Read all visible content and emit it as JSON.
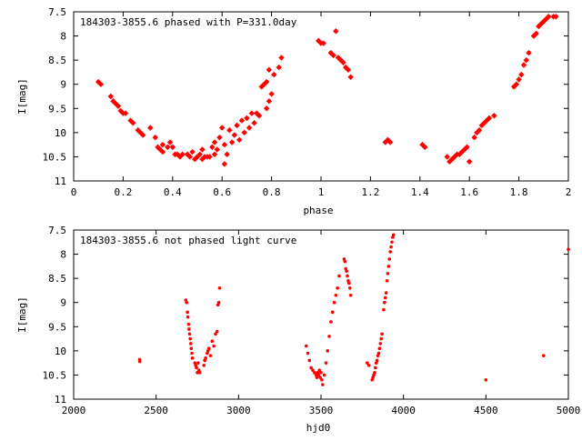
{
  "chart_data": [
    {
      "type": "scatter",
      "title": "184303-3855.6 phased with P=331.0day",
      "xlabel": "phase",
      "ylabel": "I[mag]",
      "xlim": [
        0,
        2
      ],
      "ylim": [
        11,
        7.5
      ],
      "y_inverted": true,
      "xticks": [
        0,
        0.2,
        0.4,
        0.6,
        0.8,
        1,
        1.2,
        1.4,
        1.6,
        1.8,
        2
      ],
      "xtick_labels": [
        "0",
        "0.2",
        "0.4",
        "0.6",
        "0.8",
        "1",
        "1.2",
        "1.4",
        "1.6",
        "1.8",
        "2"
      ],
      "yticks": [
        7.5,
        8,
        8.5,
        9,
        9.5,
        10,
        10.5,
        11
      ],
      "ytick_labels": [
        "7.5",
        "8",
        "8.5",
        "9",
        "9.5",
        "10",
        "10.5",
        "11"
      ],
      "marker_color": "#ff0000",
      "series": [
        {
          "points": [
            [
              0.1,
              8.95
            ],
            [
              0.11,
              9.0
            ],
            [
              0.15,
              9.25
            ],
            [
              0.16,
              9.35
            ],
            [
              0.17,
              9.4
            ],
            [
              0.18,
              9.45
            ],
            [
              0.19,
              9.55
            ],
            [
              0.2,
              9.6
            ],
            [
              0.21,
              9.6
            ],
            [
              0.23,
              9.75
            ],
            [
              0.24,
              9.8
            ],
            [
              0.26,
              9.95
            ],
            [
              0.27,
              10.0
            ],
            [
              0.28,
              10.05
            ],
            [
              0.31,
              9.9
            ],
            [
              0.33,
              10.1
            ],
            [
              0.34,
              10.3
            ],
            [
              0.35,
              10.35
            ],
            [
              0.36,
              10.25
            ],
            [
              0.36,
              10.4
            ],
            [
              0.38,
              10.3
            ],
            [
              0.39,
              10.2
            ],
            [
              0.4,
              10.3
            ],
            [
              0.41,
              10.45
            ],
            [
              0.42,
              10.45
            ],
            [
              0.43,
              10.5
            ],
            [
              0.44,
              10.45
            ],
            [
              0.46,
              10.45
            ],
            [
              0.47,
              10.5
            ],
            [
              0.48,
              10.4
            ],
            [
              0.49,
              10.55
            ],
            [
              0.5,
              10.5
            ],
            [
              0.51,
              10.45
            ],
            [
              0.52,
              10.35
            ],
            [
              0.52,
              10.55
            ],
            [
              0.53,
              10.5
            ],
            [
              0.54,
              10.5
            ],
            [
              0.55,
              10.5
            ],
            [
              0.56,
              10.3
            ],
            [
              0.57,
              10.45
            ],
            [
              0.57,
              10.2
            ],
            [
              0.58,
              10.35
            ],
            [
              0.59,
              10.1
            ],
            [
              0.6,
              9.9
            ],
            [
              0.61,
              10.65
            ],
            [
              0.61,
              10.25
            ],
            [
              0.62,
              10.45
            ],
            [
              0.63,
              9.95
            ],
            [
              0.64,
              10.2
            ],
            [
              0.65,
              10.05
            ],
            [
              0.66,
              9.85
            ],
            [
              0.67,
              10.15
            ],
            [
              0.68,
              9.75
            ],
            [
              0.69,
              10.0
            ],
            [
              0.7,
              9.7
            ],
            [
              0.71,
              9.9
            ],
            [
              0.72,
              9.6
            ],
            [
              0.73,
              9.8
            ],
            [
              0.74,
              9.6
            ],
            [
              0.75,
              9.65
            ],
            [
              0.76,
              9.05
            ],
            [
              0.77,
              9.0
            ],
            [
              0.78,
              8.95
            ],
            [
              0.78,
              9.5
            ],
            [
              0.79,
              8.7
            ],
            [
              0.79,
              9.35
            ],
            [
              0.8,
              9.2
            ],
            [
              0.81,
              8.8
            ],
            [
              0.83,
              8.65
            ],
            [
              0.84,
              8.45
            ],
            [
              0.99,
              8.1
            ],
            [
              1.0,
              8.15
            ],
            [
              1.01,
              8.15
            ],
            [
              1.04,
              8.35
            ],
            [
              1.05,
              8.4
            ],
            [
              1.06,
              7.9
            ],
            [
              1.07,
              8.45
            ],
            [
              1.08,
              8.5
            ],
            [
              1.09,
              8.55
            ],
            [
              1.1,
              8.65
            ],
            [
              1.11,
              8.7
            ],
            [
              1.12,
              8.85
            ],
            [
              1.26,
              10.2
            ],
            [
              1.27,
              10.15
            ],
            [
              1.28,
              10.2
            ],
            [
              1.41,
              10.25
            ],
            [
              1.42,
              10.3
            ],
            [
              1.51,
              10.5
            ],
            [
              1.52,
              10.6
            ],
            [
              1.53,
              10.55
            ],
            [
              1.54,
              10.5
            ],
            [
              1.55,
              10.45
            ],
            [
              1.56,
              10.45
            ],
            [
              1.57,
              10.4
            ],
            [
              1.58,
              10.35
            ],
            [
              1.59,
              10.3
            ],
            [
              1.6,
              10.6
            ],
            [
              1.62,
              10.1
            ],
            [
              1.63,
              10.0
            ],
            [
              1.64,
              9.95
            ],
            [
              1.65,
              9.85
            ],
            [
              1.66,
              9.8
            ],
            [
              1.67,
              9.75
            ],
            [
              1.68,
              9.7
            ],
            [
              1.7,
              9.65
            ],
            [
              1.78,
              9.05
            ],
            [
              1.79,
              9.0
            ],
            [
              1.8,
              8.9
            ],
            [
              1.81,
              8.8
            ],
            [
              1.82,
              8.6
            ],
            [
              1.83,
              8.5
            ],
            [
              1.84,
              8.35
            ],
            [
              1.86,
              8.0
            ],
            [
              1.87,
              7.95
            ],
            [
              1.88,
              7.8
            ],
            [
              1.89,
              7.75
            ],
            [
              1.9,
              7.7
            ],
            [
              1.91,
              7.65
            ],
            [
              1.92,
              7.6
            ],
            [
              1.94,
              7.6
            ],
            [
              1.95,
              7.6
            ]
          ]
        }
      ]
    },
    {
      "type": "scatter",
      "title": "184303-3855.6 not phased light curve",
      "xlabel": "hjd0",
      "ylabel": "I[mag]",
      "xlim": [
        2000,
        5000
      ],
      "ylim": [
        11,
        7.5
      ],
      "y_inverted": true,
      "xticks": [
        2000,
        2500,
        3000,
        3500,
        4000,
        4500,
        5000
      ],
      "xtick_labels": [
        "2000",
        "2500",
        "3000",
        "3500",
        "4000",
        "4500",
        "5000"
      ],
      "yticks": [
        7.5,
        8,
        8.5,
        9,
        9.5,
        10,
        10.5,
        11
      ],
      "ytick_labels": [
        "7.5",
        "8",
        "8.5",
        "9",
        "9.5",
        "10",
        "10.5",
        "11"
      ],
      "marker_color": "#ff0000",
      "series": [
        {
          "points": [
            [
              2400,
              10.18
            ],
            [
              2401,
              10.22
            ],
            [
              2680,
              8.95
            ],
            [
              2685,
              9.0
            ],
            [
              2690,
              9.2
            ],
            [
              2693,
              9.3
            ],
            [
              2697,
              9.45
            ],
            [
              2700,
              9.55
            ],
            [
              2703,
              9.65
            ],
            [
              2707,
              9.75
            ],
            [
              2710,
              9.85
            ],
            [
              2713,
              9.95
            ],
            [
              2717,
              10.05
            ],
            [
              2720,
              10.15
            ],
            [
              2735,
              10.25
            ],
            [
              2740,
              10.3
            ],
            [
              2745,
              10.35
            ],
            [
              2750,
              10.45
            ],
            [
              2755,
              10.25
            ],
            [
              2760,
              10.4
            ],
            [
              2765,
              10.45
            ],
            [
              2790,
              10.3
            ],
            [
              2795,
              10.2
            ],
            [
              2800,
              10.15
            ],
            [
              2810,
              10.05
            ],
            [
              2815,
              10.0
            ],
            [
              2820,
              9.95
            ],
            [
              2830,
              10.1
            ],
            [
              2840,
              9.8
            ],
            [
              2850,
              9.9
            ],
            [
              2860,
              9.65
            ],
            [
              2870,
              9.6
            ],
            [
              2875,
              9.05
            ],
            [
              2880,
              9.0
            ],
            [
              2885,
              8.7
            ],
            [
              3410,
              9.9
            ],
            [
              3420,
              10.05
            ],
            [
              3430,
              10.2
            ],
            [
              3440,
              10.35
            ],
            [
              3450,
              10.4
            ],
            [
              3460,
              10.45
            ],
            [
              3470,
              10.5
            ],
            [
              3475,
              10.55
            ],
            [
              3480,
              10.45
            ],
            [
              3485,
              10.5
            ],
            [
              3490,
              10.4
            ],
            [
              3495,
              10.55
            ],
            [
              3500,
              10.45
            ],
            [
              3505,
              10.6
            ],
            [
              3510,
              10.7
            ],
            [
              3520,
              10.5
            ],
            [
              3530,
              10.25
            ],
            [
              3540,
              10.0
            ],
            [
              3550,
              9.7
            ],
            [
              3560,
              9.4
            ],
            [
              3570,
              9.2
            ],
            [
              3580,
              9.0
            ],
            [
              3590,
              8.85
            ],
            [
              3600,
              8.7
            ],
            [
              3610,
              8.45
            ],
            [
              3640,
              8.1
            ],
            [
              3645,
              8.15
            ],
            [
              3650,
              8.3
            ],
            [
              3655,
              8.35
            ],
            [
              3660,
              8.45
            ],
            [
              3665,
              8.55
            ],
            [
              3670,
              8.6
            ],
            [
              3675,
              8.7
            ],
            [
              3680,
              8.85
            ],
            [
              3780,
              10.25
            ],
            [
              3790,
              10.3
            ],
            [
              3810,
              10.6
            ],
            [
              3815,
              10.55
            ],
            [
              3820,
              10.5
            ],
            [
              3825,
              10.45
            ],
            [
              3830,
              10.35
            ],
            [
              3835,
              10.25
            ],
            [
              3840,
              10.2
            ],
            [
              3845,
              10.1
            ],
            [
              3850,
              10.05
            ],
            [
              3855,
              9.95
            ],
            [
              3860,
              9.85
            ],
            [
              3865,
              9.75
            ],
            [
              3870,
              9.65
            ],
            [
              3880,
              9.15
            ],
            [
              3885,
              9.0
            ],
            [
              3890,
              8.9
            ],
            [
              3895,
              8.8
            ],
            [
              3900,
              8.55
            ],
            [
              3905,
              8.4
            ],
            [
              3910,
              8.25
            ],
            [
              3915,
              8.1
            ],
            [
              3920,
              7.95
            ],
            [
              3925,
              7.85
            ],
            [
              3930,
              7.75
            ],
            [
              3935,
              7.65
            ],
            [
              3940,
              7.6
            ],
            [
              4500,
              10.6
            ],
            [
              4850,
              10.1
            ],
            [
              5000,
              7.9
            ]
          ]
        }
      ]
    }
  ]
}
